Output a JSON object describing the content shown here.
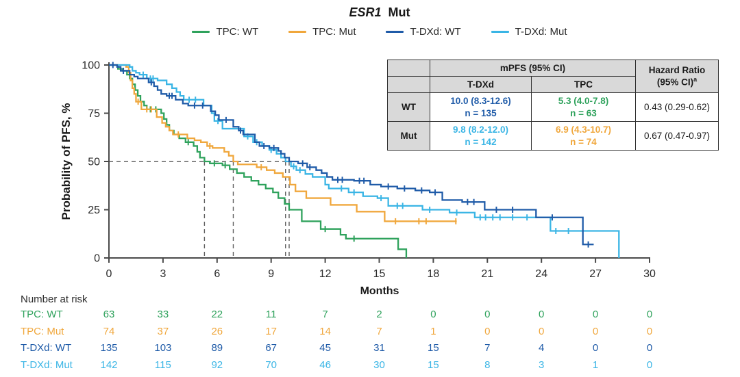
{
  "title": {
    "italic": "ESR1",
    "rest": "Mut"
  },
  "colors": {
    "green": "#2fa25c",
    "orange": "#f0a73c",
    "navy": "#1f5ba8",
    "sky": "#3ab5e5",
    "axis": "#4a4a4a",
    "tick_text": "#2b2b2b",
    "dashed": "#5f5f5f",
    "table_header_bg": "#d9d9d9",
    "table_border": "#2f2f2f",
    "text": "#1a1a1a"
  },
  "legend": {
    "items": [
      {
        "label": "TPC: WT",
        "color_key": "green"
      },
      {
        "label": "TPC: Mut",
        "color_key": "orange"
      },
      {
        "label": "T-DXd: WT",
        "color_key": "navy"
      },
      {
        "label": "T-DXd: Mut",
        "color_key": "sky"
      }
    ]
  },
  "axes": {
    "y_title": "Probability of PFS, %",
    "x_title": "Months"
  },
  "chart_data": {
    "type": "line",
    "subtype": "kaplan-meier-step",
    "title": "ESR1 Mut",
    "xlabel": "Months",
    "ylabel": "Probability of PFS, %",
    "xlim": [
      0,
      30
    ],
    "ylim": [
      0,
      100
    ],
    "x_ticks": [
      0,
      3,
      6,
      9,
      12,
      15,
      18,
      21,
      24,
      27,
      30
    ],
    "y_ticks": [
      0,
      25,
      50,
      75,
      100
    ],
    "grid": false,
    "legend_position": "top-center",
    "median_guides": {
      "horizontal_pct": 50,
      "horizontal_extent_month": 10.0,
      "vertical_months": [
        5.3,
        6.9,
        9.8,
        10.0
      ]
    },
    "series": [
      {
        "name": "TPC: WT",
        "color_key": "green",
        "n": 63,
        "median_mpfs": "5.3 (4.0-7.8)",
        "steps": [
          [
            0,
            100
          ],
          [
            0.5,
            98
          ],
          [
            0.75,
            97
          ],
          [
            1.0,
            95
          ],
          [
            1.15,
            93
          ],
          [
            1.3,
            90
          ],
          [
            1.45,
            87
          ],
          [
            1.6,
            84
          ],
          [
            1.75,
            81
          ],
          [
            1.95,
            79
          ],
          [
            2.1,
            77
          ],
          [
            2.9,
            75
          ],
          [
            3.05,
            72
          ],
          [
            3.2,
            69
          ],
          [
            3.35,
            66
          ],
          [
            3.6,
            64
          ],
          [
            3.9,
            62
          ],
          [
            4.25,
            60
          ],
          [
            4.7,
            58
          ],
          [
            4.9,
            55
          ],
          [
            5.05,
            52
          ],
          [
            5.3,
            50
          ],
          [
            5.6,
            49
          ],
          [
            6.3,
            48
          ],
          [
            6.7,
            46
          ],
          [
            7.1,
            44
          ],
          [
            7.5,
            42
          ],
          [
            7.9,
            40
          ],
          [
            8.3,
            38
          ],
          [
            8.7,
            36
          ],
          [
            9.1,
            34
          ],
          [
            9.4,
            31
          ],
          [
            9.75,
            28
          ],
          [
            10.0,
            25
          ],
          [
            10.7,
            19
          ],
          [
            11.75,
            15
          ],
          [
            12.85,
            12
          ],
          [
            13.15,
            10
          ],
          [
            16.05,
            4.5
          ],
          [
            16.5,
            0
          ]
        ],
        "censors": [
          [
            2.3,
            77
          ],
          [
            2.6,
            77
          ],
          [
            4.4,
            60
          ],
          [
            5.85,
            49
          ],
          [
            6.45,
            48
          ],
          [
            12.0,
            15
          ],
          [
            13.6,
            10
          ]
        ]
      },
      {
        "name": "TPC: Mut",
        "color_key": "orange",
        "n": 74,
        "median_mpfs": "6.9 (4.3-10.7)",
        "steps": [
          [
            0,
            100
          ],
          [
            0.95,
            99
          ],
          [
            1.1,
            96
          ],
          [
            1.2,
            92
          ],
          [
            1.3,
            88
          ],
          [
            1.4,
            85
          ],
          [
            1.5,
            81
          ],
          [
            1.8,
            77
          ],
          [
            2.65,
            73
          ],
          [
            2.95,
            70
          ],
          [
            3.15,
            68
          ],
          [
            3.35,
            66
          ],
          [
            3.55,
            64
          ],
          [
            4.35,
            62
          ],
          [
            4.75,
            61
          ],
          [
            5.1,
            60
          ],
          [
            5.45,
            58
          ],
          [
            5.75,
            57
          ],
          [
            6.4,
            55
          ],
          [
            6.65,
            53
          ],
          [
            6.9,
            50
          ],
          [
            7.15,
            48.5
          ],
          [
            8.2,
            47
          ],
          [
            8.75,
            45.5
          ],
          [
            9.2,
            44
          ],
          [
            9.65,
            42
          ],
          [
            10.05,
            38
          ],
          [
            10.35,
            34.5
          ],
          [
            10.95,
            31
          ],
          [
            12.3,
            27.5
          ],
          [
            13.75,
            24
          ],
          [
            15.3,
            19
          ],
          [
            19.3,
            19
          ]
        ],
        "censors": [
          [
            1.62,
            81
          ],
          [
            2.1,
            77
          ],
          [
            2.35,
            77
          ],
          [
            3.85,
            64
          ],
          [
            5.6,
            58
          ],
          [
            8.45,
            47
          ],
          [
            15.9,
            19
          ],
          [
            17.2,
            19
          ],
          [
            17.6,
            19
          ],
          [
            19.25,
            19
          ]
        ]
      },
      {
        "name": "T-DXd: Mut",
        "color_key": "sky",
        "n": 142,
        "median_mpfs": "9.8 (8.2-12.0)",
        "steps": [
          [
            0,
            100
          ],
          [
            1.15,
            99
          ],
          [
            1.3,
            97
          ],
          [
            1.5,
            96
          ],
          [
            1.7,
            95
          ],
          [
            2.1,
            93
          ],
          [
            2.7,
            92
          ],
          [
            3.2,
            90
          ],
          [
            3.5,
            88
          ],
          [
            3.75,
            86
          ],
          [
            3.95,
            84
          ],
          [
            4.15,
            82
          ],
          [
            5.25,
            79
          ],
          [
            5.7,
            75
          ],
          [
            5.85,
            71
          ],
          [
            6.3,
            67
          ],
          [
            7.5,
            63
          ],
          [
            8.0,
            60
          ],
          [
            8.5,
            58
          ],
          [
            8.9,
            56
          ],
          [
            9.3,
            54
          ],
          [
            9.55,
            52
          ],
          [
            9.8,
            50
          ],
          [
            10.1,
            47.5
          ],
          [
            10.4,
            45.5
          ],
          [
            10.9,
            43.5
          ],
          [
            11.3,
            42
          ],
          [
            12.0,
            38
          ],
          [
            12.2,
            36
          ],
          [
            13.3,
            34
          ],
          [
            14.1,
            32
          ],
          [
            14.9,
            31
          ],
          [
            15.5,
            27
          ],
          [
            17.4,
            25
          ],
          [
            18.9,
            23.5
          ],
          [
            20.3,
            21
          ],
          [
            24.5,
            14
          ],
          [
            28.3,
            0
          ]
        ],
        "censors": [
          [
            1.9,
            95
          ],
          [
            2.3,
            93
          ],
          [
            2.45,
            93
          ],
          [
            4.45,
            82
          ],
          [
            4.8,
            82
          ],
          [
            6.05,
            71
          ],
          [
            7.7,
            63
          ],
          [
            8.2,
            60
          ],
          [
            9.0,
            56
          ],
          [
            10.25,
            47.5
          ],
          [
            10.6,
            45.5
          ],
          [
            12.9,
            36
          ],
          [
            13.6,
            34
          ],
          [
            15.1,
            31
          ],
          [
            16.0,
            27
          ],
          [
            16.3,
            27
          ],
          [
            17.8,
            25
          ],
          [
            19.3,
            23.5
          ],
          [
            20.6,
            21
          ],
          [
            20.9,
            21
          ],
          [
            21.3,
            21
          ],
          [
            21.7,
            21
          ],
          [
            22.4,
            21
          ],
          [
            23.2,
            21
          ],
          [
            24.8,
            14
          ],
          [
            25.5,
            14
          ]
        ]
      },
      {
        "name": "T-DXd: WT",
        "color_key": "navy",
        "n": 135,
        "median_mpfs": "10.0 (8.3-12.6)",
        "steps": [
          [
            0,
            100
          ],
          [
            0.45,
            99
          ],
          [
            0.65,
            97
          ],
          [
            1.15,
            95
          ],
          [
            1.4,
            94
          ],
          [
            1.6,
            93
          ],
          [
            2.2,
            91
          ],
          [
            2.5,
            89
          ],
          [
            2.7,
            87
          ],
          [
            2.9,
            85
          ],
          [
            3.2,
            84
          ],
          [
            3.7,
            82
          ],
          [
            4.1,
            80
          ],
          [
            4.4,
            79
          ],
          [
            5.65,
            76
          ],
          [
            5.9,
            74
          ],
          [
            6.1,
            71.5
          ],
          [
            6.9,
            68
          ],
          [
            7.2,
            66
          ],
          [
            7.45,
            64
          ],
          [
            8.1,
            60
          ],
          [
            8.35,
            58
          ],
          [
            8.9,
            57
          ],
          [
            9.4,
            55.5
          ],
          [
            9.55,
            54
          ],
          [
            9.75,
            52
          ],
          [
            10.0,
            50
          ],
          [
            10.5,
            49
          ],
          [
            11.0,
            47
          ],
          [
            11.5,
            45.5
          ],
          [
            11.8,
            44
          ],
          [
            12.1,
            42
          ],
          [
            12.4,
            40.5
          ],
          [
            13.6,
            40
          ],
          [
            14.5,
            38
          ],
          [
            15.1,
            37
          ],
          [
            16.0,
            36
          ],
          [
            17.0,
            35
          ],
          [
            17.8,
            34
          ],
          [
            18.5,
            30
          ],
          [
            19.6,
            29
          ],
          [
            20.85,
            25
          ],
          [
            23.7,
            21
          ],
          [
            26.3,
            7
          ],
          [
            26.9,
            7
          ]
        ],
        "censors": [
          [
            0.22,
            100
          ],
          [
            0.8,
            97
          ],
          [
            2.35,
            91
          ],
          [
            3.35,
            84
          ],
          [
            3.5,
            84
          ],
          [
            4.75,
            79
          ],
          [
            5.2,
            79
          ],
          [
            6.5,
            71.5
          ],
          [
            7.3,
            66
          ],
          [
            8.6,
            58
          ],
          [
            9.15,
            57
          ],
          [
            10.75,
            49
          ],
          [
            11.15,
            47
          ],
          [
            12.7,
            40.5
          ],
          [
            12.95,
            40.5
          ],
          [
            13.9,
            40
          ],
          [
            14.15,
            40
          ],
          [
            15.5,
            37
          ],
          [
            16.4,
            36
          ],
          [
            17.35,
            35
          ],
          [
            18.1,
            34
          ],
          [
            19.9,
            29
          ],
          [
            20.25,
            29
          ],
          [
            21.5,
            25
          ],
          [
            22.4,
            25
          ],
          [
            24.6,
            21
          ],
          [
            26.6,
            7
          ]
        ]
      }
    ]
  },
  "inset_table": {
    "col_group_header": "mPFS (95% CI)",
    "col_tdxd": "T-DXd",
    "col_tpc": "TPC",
    "hr_line1": "Hazard Ratio",
    "hr_line2": "(95% CI)",
    "hr_sup": "a",
    "rows": [
      {
        "label": "WT",
        "tdxd_mpfs": "10.0 (8.3-12.6)",
        "tdxd_n": "n = 135",
        "tdxd_color": "navy",
        "tpc_mpfs": "5.3 (4.0-7.8)",
        "tpc_n": "n = 63",
        "tpc_color": "green",
        "hr": "0.43 (0.29-0.62)"
      },
      {
        "label": "Mut",
        "tdxd_mpfs": "9.8 (8.2-12.0)",
        "tdxd_n": "n = 142",
        "tdxd_color": "sky",
        "tpc_mpfs": "6.9 (4.3-10.7)",
        "tpc_n": "n = 74",
        "tpc_color": "orange",
        "hr": "0.67 (0.47-0.97)"
      }
    ]
  },
  "risk_table": {
    "title": "Number at risk",
    "months": [
      0,
      3,
      6,
      9,
      12,
      15,
      18,
      21,
      24,
      27,
      30
    ],
    "rows": [
      {
        "label": "TPC: WT",
        "color_key": "green",
        "values": [
          63,
          33,
          22,
          11,
          7,
          2,
          0,
          0,
          0,
          0,
          0
        ]
      },
      {
        "label": "TPC: Mut",
        "color_key": "orange",
        "values": [
          74,
          37,
          26,
          17,
          14,
          7,
          1,
          0,
          0,
          0,
          0
        ]
      },
      {
        "label": "T-DXd: WT",
        "color_key": "navy",
        "values": [
          135,
          103,
          89,
          67,
          45,
          31,
          15,
          7,
          4,
          0,
          0
        ]
      },
      {
        "label": "T-DXd: Mut",
        "color_key": "sky",
        "values": [
          142,
          115,
          92,
          70,
          46,
          30,
          15,
          8,
          3,
          1,
          0
        ]
      }
    ]
  }
}
